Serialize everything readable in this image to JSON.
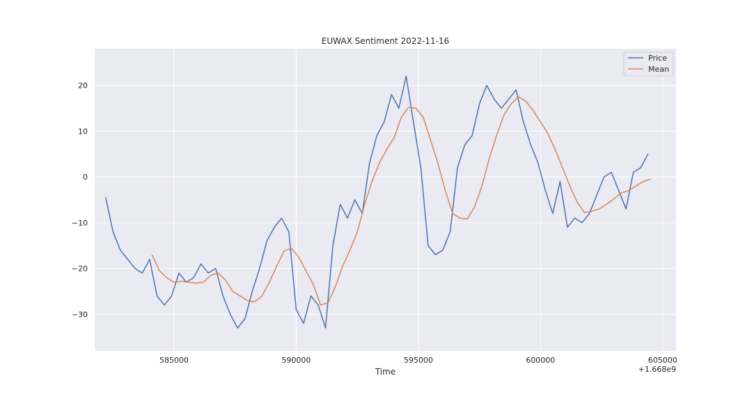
{
  "chart_data": {
    "type": "line",
    "title": "EUWAX Sentiment 2022-11-16",
    "xlabel": "Time",
    "ylabel": "",
    "x_offset_label": "+1.668e9",
    "xlim": [
      581750,
      605550
    ],
    "ylim": [
      -38,
      28
    ],
    "x_ticks": [
      585000,
      590000,
      595000,
      600000,
      605000
    ],
    "y_ticks": [
      -30,
      -20,
      -10,
      0,
      10,
      20
    ],
    "grid": true,
    "legend_position": "top-right",
    "series": [
      {
        "name": "Price",
        "color": "#4c72b0",
        "x": [
          582200,
          582500,
          582800,
          583100,
          583400,
          583700,
          584000,
          584300,
          584600,
          584900,
          585200,
          585500,
          585800,
          586100,
          586400,
          586700,
          587000,
          587300,
          587600,
          587900,
          588200,
          588500,
          588800,
          589100,
          589400,
          589700,
          590000,
          590300,
          590600,
          590900,
          591200,
          591500,
          591800,
          592100,
          592400,
          592700,
          593000,
          593300,
          593600,
          593900,
          594200,
          594500,
          594800,
          595100,
          595400,
          595700,
          596000,
          596300,
          596600,
          596900,
          597200,
          597500,
          597800,
          598100,
          598400,
          598700,
          599000,
          599300,
          599600,
          599900,
          600200,
          600500,
          600800,
          601100,
          601400,
          601700,
          602000,
          602300,
          602600,
          602900,
          603200,
          603500,
          603800,
          604100,
          604400
        ],
        "y": [
          -4.5,
          -12,
          -16,
          -18,
          -20,
          -21,
          -18,
          -26,
          -28,
          -26,
          -21,
          -23,
          -22,
          -19,
          -21,
          -20,
          -26,
          -30,
          -33,
          -31,
          -25,
          -20,
          -14,
          -11,
          -9,
          -12,
          -29,
          -32,
          -26,
          -28,
          -33,
          -15,
          -6,
          -9,
          -5,
          -8,
          3,
          9,
          12,
          18,
          15,
          22,
          12,
          2,
          -15,
          -17,
          -16,
          -12,
          2,
          7,
          9,
          16,
          20,
          17,
          15,
          17,
          19,
          12,
          7,
          3,
          -3,
          -8,
          -1,
          -11,
          -9,
          -10,
          -8,
          -4,
          0,
          1,
          -3,
          -7,
          1,
          2,
          5
        ]
      },
      {
        "name": "Mean",
        "color": "#dd8452",
        "x": [
          584100,
          584400,
          584700,
          585000,
          585300,
          585600,
          585900,
          586200,
          586500,
          586800,
          587100,
          587400,
          587700,
          588000,
          588300,
          588600,
          588900,
          589200,
          589500,
          589800,
          590100,
          590400,
          590700,
          591000,
          591300,
          591600,
          591900,
          592200,
          592500,
          592800,
          593100,
          593400,
          593700,
          594000,
          594300,
          594600,
          594900,
          595200,
          595500,
          595800,
          596100,
          596400,
          596700,
          597000,
          597300,
          597600,
          597900,
          598200,
          598500,
          598800,
          599100,
          599400,
          599700,
          600000,
          600300,
          600600,
          600900,
          601200,
          601500,
          601800,
          602100,
          602400,
          602700,
          603000,
          603300,
          603600,
          603900,
          604200,
          604500
        ],
        "y": [
          -17,
          -20.5,
          -22,
          -23,
          -22.8,
          -23,
          -23.2,
          -23,
          -21.5,
          -21,
          -22.5,
          -25,
          -26,
          -27,
          -27.3,
          -26,
          -23,
          -19.5,
          -16.2,
          -15.6,
          -17.5,
          -20.5,
          -23.5,
          -28,
          -27.5,
          -24,
          -19.5,
          -16,
          -12,
          -6,
          -1,
          3,
          6,
          8.5,
          13,
          15.2,
          15,
          13,
          8,
          3,
          -3,
          -8,
          -9,
          -9.2,
          -6.5,
          -2,
          4,
          9,
          13.5,
          16,
          17.5,
          16.5,
          14.5,
          12,
          9.5,
          6,
          2,
          -2,
          -5.5,
          -7.8,
          -7.5,
          -7,
          -6,
          -4.8,
          -3.5,
          -3,
          -2,
          -1,
          -0.5
        ]
      }
    ]
  }
}
